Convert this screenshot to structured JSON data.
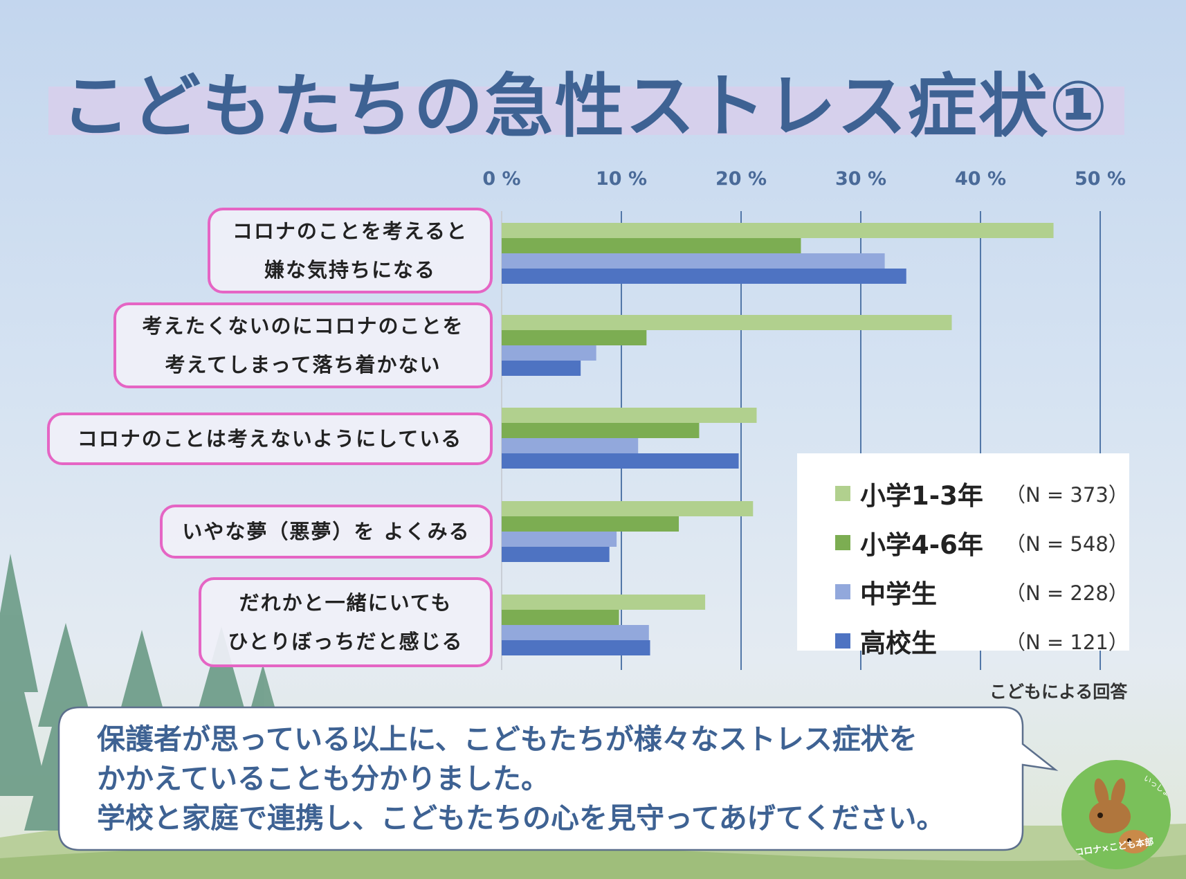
{
  "slide": {
    "title": "こどもたちの急性ストレス症状①"
  },
  "chart_data": {
    "type": "bar",
    "orientation": "horizontal",
    "categories": [
      "コロナのことを考えると\n嫌な気持ちになる",
      "考えたくないのにコロナのことを\n考えてしまって落ち着かない",
      "コロナのことは考えないようにしている",
      "いやな夢（悪夢）を よくみる",
      "だれかと一緒にいても\nひとりぼっちだと感じる"
    ],
    "series": [
      {
        "name": "小学1-3年",
        "n_label": "（N = 373）",
        "color": "#b1d08e",
        "values": [
          46.1,
          37.6,
          21.3,
          21.0,
          17.0
        ]
      },
      {
        "name": "小学4-6年",
        "n_label": "（N = 548）",
        "color": "#7cad52",
        "values": [
          25.0,
          12.1,
          16.5,
          14.8,
          9.8
        ]
      },
      {
        "name": "中学生",
        "n_label": "（N = 228）",
        "color": "#92a8dc",
        "values": [
          32.0,
          7.9,
          11.4,
          9.6,
          12.3
        ]
      },
      {
        "name": "高校生",
        "n_label": "（N = 121）",
        "color": "#4e73c2",
        "values": [
          33.8,
          6.6,
          19.8,
          9.0,
          12.4
        ]
      }
    ],
    "x_ticks": [
      "0 %",
      "10 %",
      "20 %",
      "30 %",
      "40 %",
      "50 %"
    ],
    "xlim": [
      0,
      50
    ],
    "grid": true,
    "legend_position": "lower-right",
    "source_note": "こどもによる回答"
  },
  "message": {
    "lines": [
      "保護者が思っている以上に、こどもたちが様々なストレス症状を",
      "かかえていることも分かりました。",
      "学校と家庭で連携し、こどもたちの心を見守ってあげてください。"
    ]
  },
  "mascot": {
    "text_top": "いっしょに\nカンガエルー",
    "text_bottom": "コロナ×こども本部"
  }
}
